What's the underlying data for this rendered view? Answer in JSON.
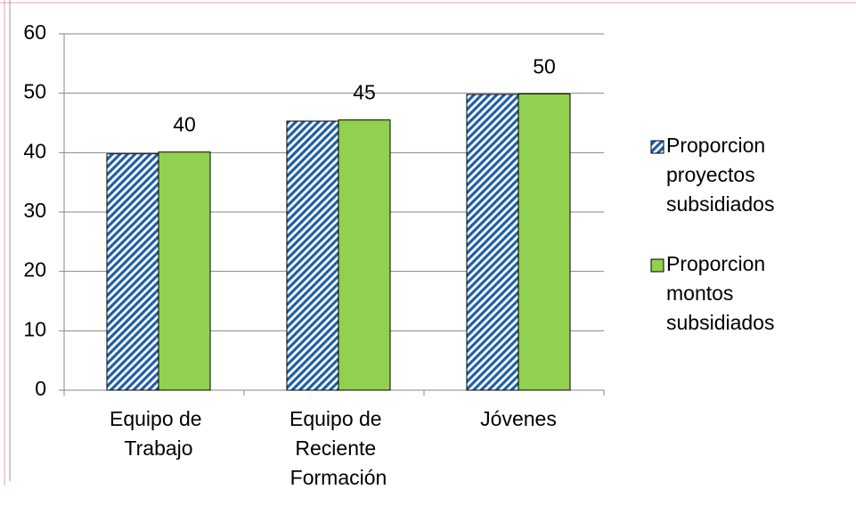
{
  "chart_data": {
    "type": "bar",
    "categories": [
      "Equipo de Trabajo",
      "Equipo de Reciente Formación",
      "Jóvenes"
    ],
    "series": [
      {
        "name": "Proporcion proyectos subsidiados",
        "color": "#1f5fa8",
        "pattern": "hatch",
        "values": [
          39.8,
          45.3,
          49.8
        ]
      },
      {
        "name": "Proporcion montos subsidiados",
        "color": "#92d050",
        "values": [
          40.1,
          45.5,
          49.9
        ],
        "value_labels": [
          "40",
          "45",
          "50"
        ]
      }
    ],
    "ylim": [
      0,
      60
    ],
    "yticks": [
      0,
      10,
      20,
      30,
      40,
      50,
      60
    ],
    "grid": true,
    "legend": "right"
  }
}
